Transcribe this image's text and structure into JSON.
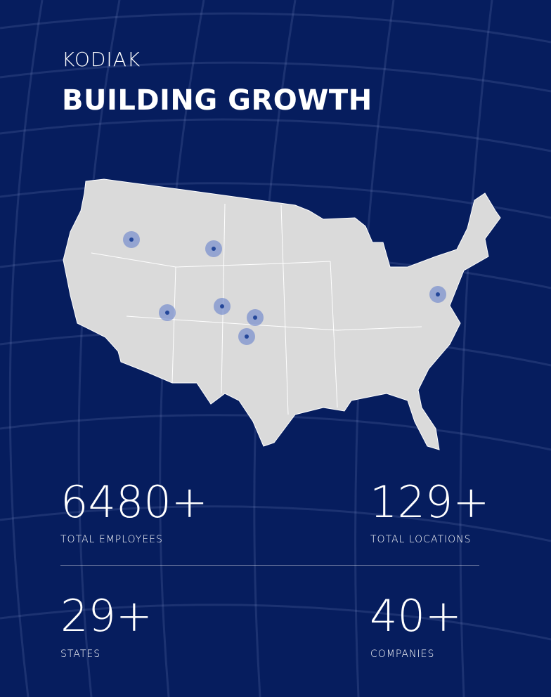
{
  "header": {
    "brand": "KODIAK",
    "title": "BUILDING GROWTH"
  },
  "stats": [
    {
      "value": "6480+",
      "label": "TOTAL EMPLOYEES"
    },
    {
      "value": "129+",
      "label": "TOTAL LOCATIONS"
    },
    {
      "value": "29+",
      "label": "STATES"
    },
    {
      "value": "40+",
      "label": "COMPANIES"
    }
  ]
}
